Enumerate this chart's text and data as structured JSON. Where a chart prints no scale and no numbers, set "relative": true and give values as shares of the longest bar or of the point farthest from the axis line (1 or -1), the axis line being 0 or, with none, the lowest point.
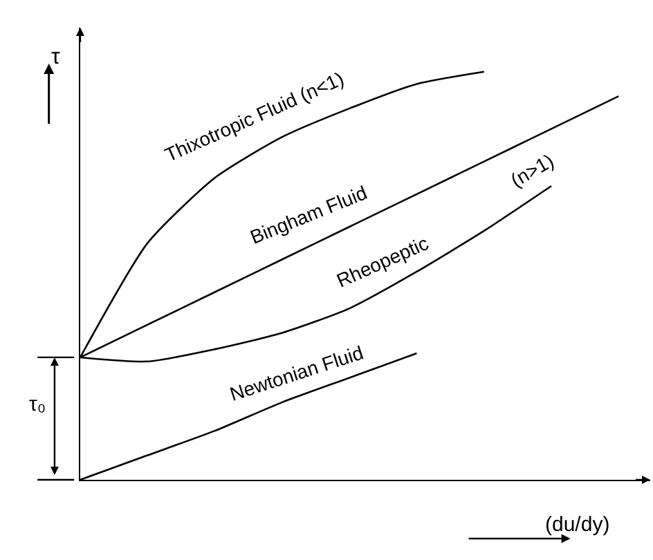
{
  "chart_data": {
    "type": "line",
    "relative": true,
    "xlabel": "(du/dy)",
    "ylabel": "τ",
    "categories": [
      null,
      null,
      null,
      null,
      null,
      null,
      null,
      null,
      null
    ],
    "series": [
      {
        "name": "Thixotropic Fluid (n<1)",
        "color": "#000000",
        "values": [
          0.3,
          0.58,
          0.74,
          0.84,
          0.91,
          0.97,
          1.0,
          null,
          null
        ]
      },
      {
        "name": "Bingham Fluid",
        "color": "#000000",
        "values": [
          0.3,
          0.38,
          0.46,
          0.54,
          0.62,
          0.7,
          0.78,
          0.86,
          0.94
        ]
      },
      {
        "name": "Rheopeptic",
        "color": "#000000",
        "values": [
          0.3,
          0.29,
          0.32,
          0.36,
          0.42,
          0.51,
          0.61,
          0.72,
          null
        ]
      },
      {
        "name": "Newtonian Fluid",
        "color": "#000000",
        "values": [
          0.0,
          0.06,
          0.12,
          0.19,
          0.25,
          0.31,
          null,
          null,
          null
        ]
      }
    ],
    "annotations": [
      "(n>1)",
      "τ₀"
    ],
    "legend": false,
    "marker": "none",
    "line_style": "solid"
  }
}
